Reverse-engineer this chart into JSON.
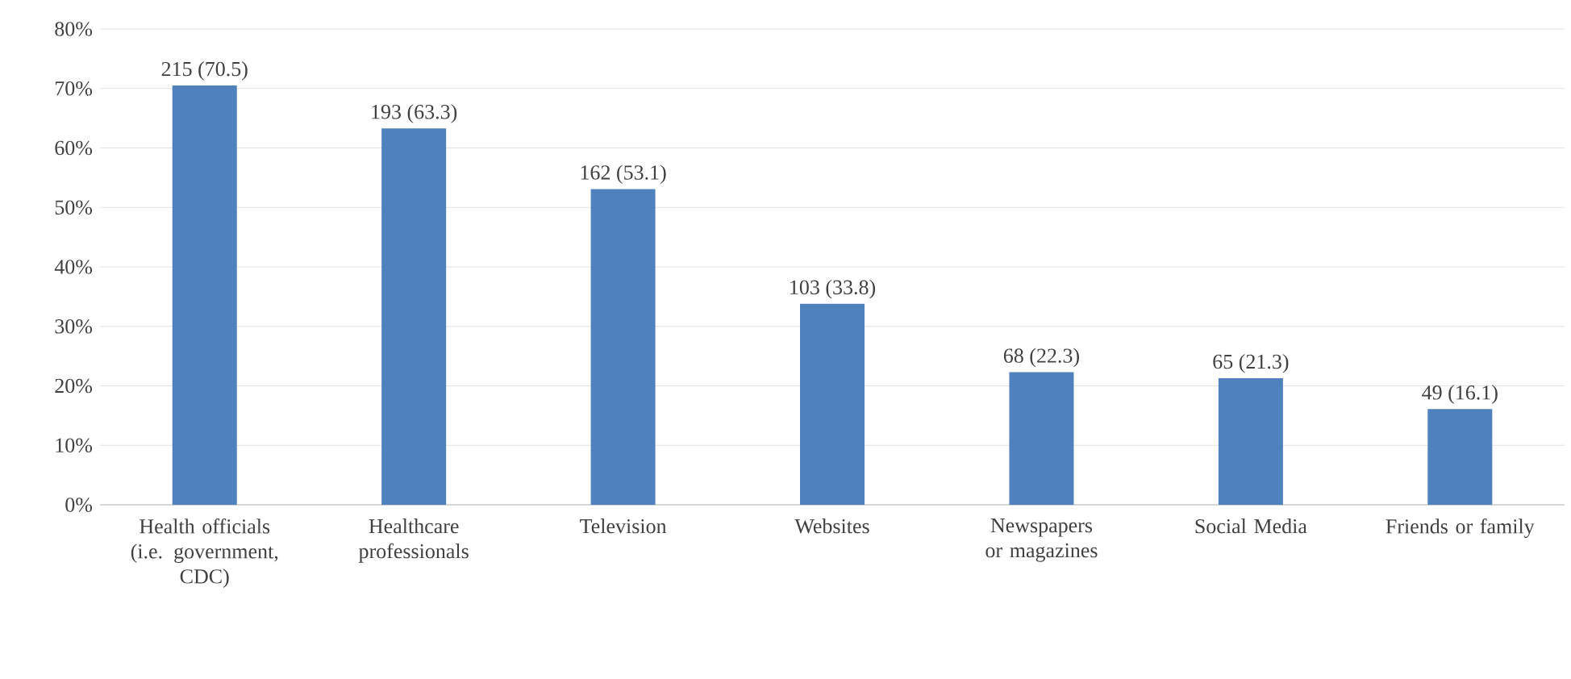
{
  "chart_data": {
    "type": "bar",
    "categories": [
      "Health officials (i.e. government, CDC)",
      "Healthcare professionals",
      "Television",
      "Websites",
      "Newspapers or magazines",
      "Social Media",
      "Friends or family"
    ],
    "values": [
      70.5,
      63.3,
      53.1,
      33.8,
      22.3,
      21.3,
      16.1
    ],
    "value_labels": [
      "215 (70.5)",
      "193 (63.3)",
      "162 (53.1)",
      "103 (33.8)",
      "68 (22.3)",
      "65 (21.3)",
      "49 (16.1)"
    ],
    "color": "#4f81bd",
    "ylim": [
      0,
      80
    ],
    "yticks": [
      {
        "value": 0,
        "label": "0%"
      },
      {
        "value": 10,
        "label": "10%"
      },
      {
        "value": 20,
        "label": "20%"
      },
      {
        "value": 30,
        "label": "30%"
      },
      {
        "value": 40,
        "label": "40%"
      },
      {
        "value": 50,
        "label": "50%"
      },
      {
        "value": 60,
        "label": "60%"
      },
      {
        "value": 70,
        "label": "70%"
      },
      {
        "value": 80,
        "label": "80%"
      }
    ],
    "grid": "y"
  }
}
